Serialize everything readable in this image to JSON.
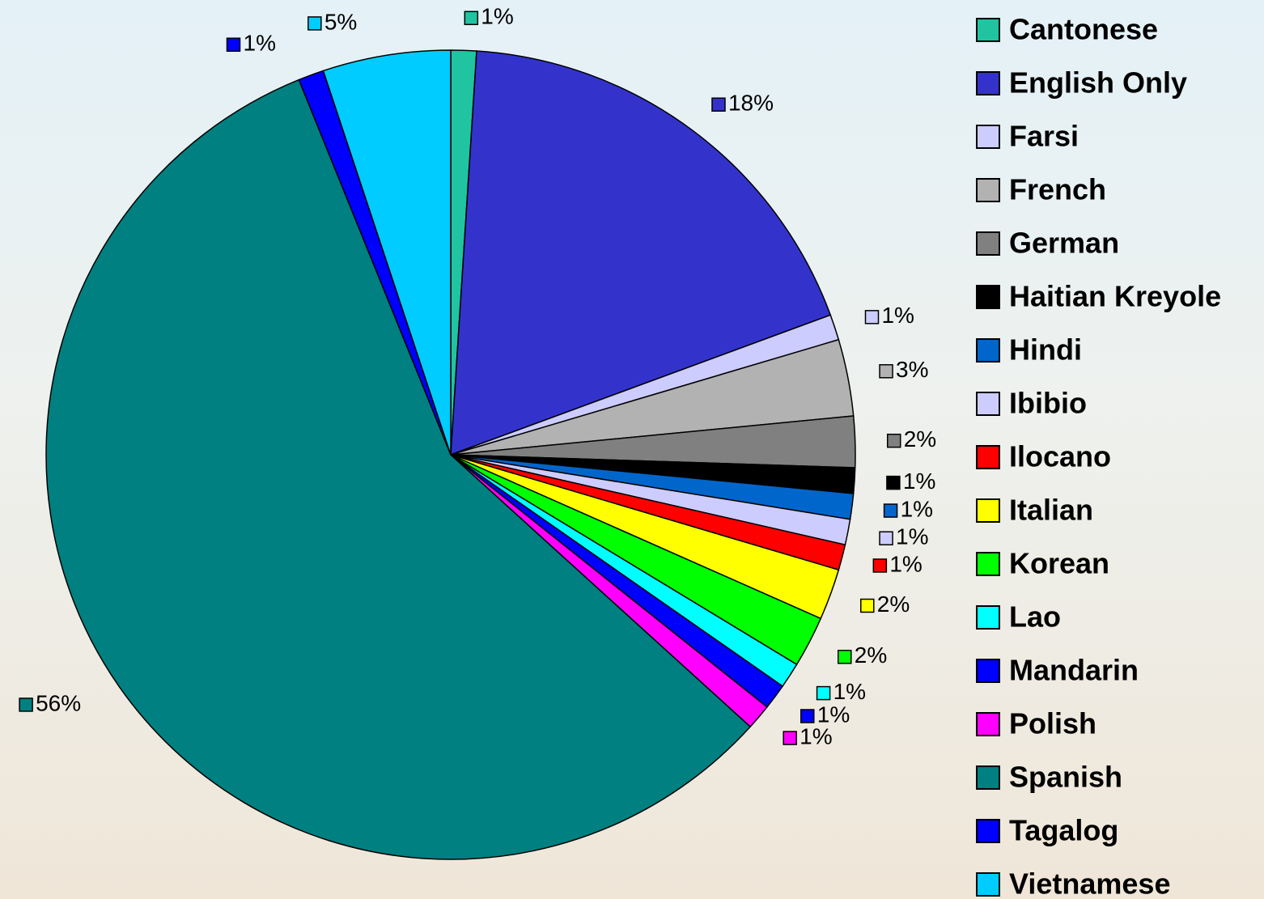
{
  "chart_data": {
    "type": "pie",
    "categories": [
      "Cantonese",
      "English Only",
      "Farsi",
      "French",
      "German",
      "Haitian Kreyole",
      "Hindi",
      "Ibibio",
      "Ilocano",
      "Italian",
      "Korean",
      "Lao",
      "Mandarin",
      "Polish",
      "Spanish",
      "Tagalog",
      "Vietnamese"
    ],
    "values": [
      1,
      18,
      1,
      3,
      2,
      1,
      1,
      1,
      1,
      2,
      2,
      1,
      1,
      1,
      56,
      1,
      5
    ],
    "value_labels": [
      "1%",
      "18%",
      "1%",
      "3%",
      "2%",
      "1%",
      "1%",
      "1%",
      "1%",
      "2%",
      "2%",
      "1%",
      "1%",
      "1%",
      "56%",
      "1%",
      "5%"
    ],
    "colors": [
      "#20c4a0",
      "#3333cc",
      "#ccccff",
      "#b2b2b2",
      "#808080",
      "#000000",
      "#0066cc",
      "#ccccff",
      "#ff0000",
      "#ffff00",
      "#00ff00",
      "#00ffff",
      "#0000ff",
      "#ff00ff",
      "#008080",
      "#0000ff",
      "#00ccff"
    ],
    "legend": "right"
  }
}
